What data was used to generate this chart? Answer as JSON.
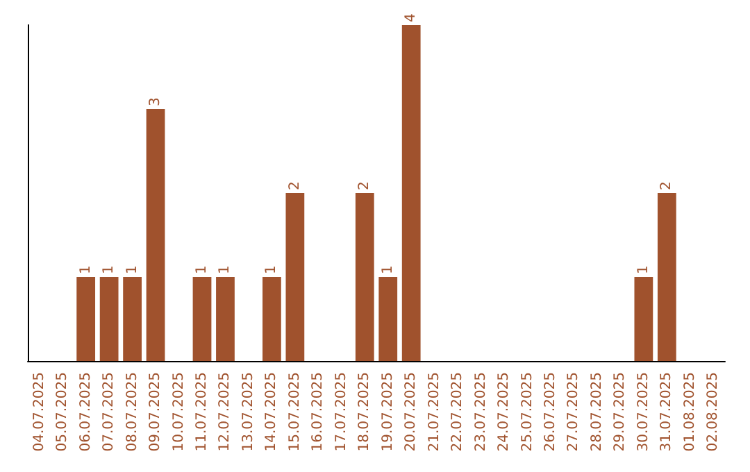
{
  "chart_data": {
    "type": "bar",
    "categories": [
      "04.07.2025",
      "05.07.2025",
      "06.07.2025",
      "07.07.2025",
      "08.07.2025",
      "09.07.2025",
      "10.07.2025",
      "11.07.2025",
      "12.07.2025",
      "13.07.2025",
      "14.07.2025",
      "15.07.2025",
      "16.07.2025",
      "17.07.2025",
      "18.07.2025",
      "19.07.2025",
      "20.07.2025",
      "21.07.2025",
      "22.07.2025",
      "23.07.2025",
      "24.07.2025",
      "25.07.2025",
      "26.07.2025",
      "27.07.2025",
      "28.07.2025",
      "29.07.2025",
      "30.07.2025",
      "31.07.2025",
      "01.08.2025",
      "02.08.2025"
    ],
    "values": [
      0,
      0,
      1,
      1,
      1,
      3,
      0,
      1,
      1,
      0,
      1,
      2,
      0,
      0,
      2,
      1,
      4,
      0,
      0,
      0,
      0,
      0,
      0,
      0,
      0,
      0,
      1,
      2,
      0,
      0
    ],
    "value_labels": [
      null,
      null,
      "1",
      "1",
      "1",
      "3",
      null,
      "1",
      "1",
      null,
      "1",
      "2",
      null,
      null,
      "2",
      "1",
      "4",
      null,
      null,
      null,
      null,
      null,
      null,
      null,
      null,
      null,
      "1",
      "2",
      null,
      null
    ],
    "color": "#a0522d",
    "grid": false,
    "tick_labels": "x"
  }
}
